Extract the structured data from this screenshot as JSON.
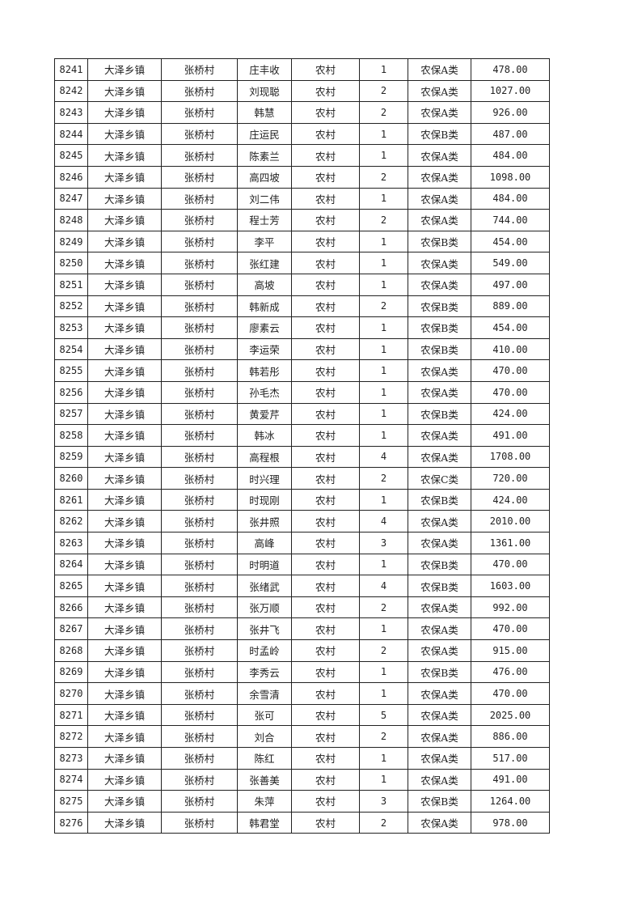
{
  "table": {
    "rows": [
      [
        "8241",
        "大泽乡镇",
        "张桥村",
        "庄丰收",
        "农村",
        "1",
        "农保A类",
        "478.00"
      ],
      [
        "8242",
        "大泽乡镇",
        "张桥村",
        "刘现聪",
        "农村",
        "2",
        "农保A类",
        "1027.00"
      ],
      [
        "8243",
        "大泽乡镇",
        "张桥村",
        "韩慧",
        "农村",
        "2",
        "农保A类",
        "926.00"
      ],
      [
        "8244",
        "大泽乡镇",
        "张桥村",
        "庄运民",
        "农村",
        "1",
        "农保B类",
        "487.00"
      ],
      [
        "8245",
        "大泽乡镇",
        "张桥村",
        "陈素兰",
        "农村",
        "1",
        "农保A类",
        "484.00"
      ],
      [
        "8246",
        "大泽乡镇",
        "张桥村",
        "高四坡",
        "农村",
        "2",
        "农保A类",
        "1098.00"
      ],
      [
        "8247",
        "大泽乡镇",
        "张桥村",
        "刘二伟",
        "农村",
        "1",
        "农保A类",
        "484.00"
      ],
      [
        "8248",
        "大泽乡镇",
        "张桥村",
        "程士芳",
        "农村",
        "2",
        "农保A类",
        "744.00"
      ],
      [
        "8249",
        "大泽乡镇",
        "张桥村",
        "李平",
        "农村",
        "1",
        "农保B类",
        "454.00"
      ],
      [
        "8250",
        "大泽乡镇",
        "张桥村",
        "张红建",
        "农村",
        "1",
        "农保A类",
        "549.00"
      ],
      [
        "8251",
        "大泽乡镇",
        "张桥村",
        "高坡",
        "农村",
        "1",
        "农保A类",
        "497.00"
      ],
      [
        "8252",
        "大泽乡镇",
        "张桥村",
        "韩新成",
        "农村",
        "2",
        "农保B类",
        "889.00"
      ],
      [
        "8253",
        "大泽乡镇",
        "张桥村",
        "廖素云",
        "农村",
        "1",
        "农保B类",
        "454.00"
      ],
      [
        "8254",
        "大泽乡镇",
        "张桥村",
        "李运荣",
        "农村",
        "1",
        "农保B类",
        "410.00"
      ],
      [
        "8255",
        "大泽乡镇",
        "张桥村",
        "韩若彤",
        "农村",
        "1",
        "农保A类",
        "470.00"
      ],
      [
        "8256",
        "大泽乡镇",
        "张桥村",
        "孙毛杰",
        "农村",
        "1",
        "农保A类",
        "470.00"
      ],
      [
        "8257",
        "大泽乡镇",
        "张桥村",
        "黄爱芹",
        "农村",
        "1",
        "农保B类",
        "424.00"
      ],
      [
        "8258",
        "大泽乡镇",
        "张桥村",
        "韩冰",
        "农村",
        "1",
        "农保A类",
        "491.00"
      ],
      [
        "8259",
        "大泽乡镇",
        "张桥村",
        "高程根",
        "农村",
        "4",
        "农保A类",
        "1708.00"
      ],
      [
        "8260",
        "大泽乡镇",
        "张桥村",
        "时兴理",
        "农村",
        "2",
        "农保C类",
        "720.00"
      ],
      [
        "8261",
        "大泽乡镇",
        "张桥村",
        "时现刚",
        "农村",
        "1",
        "农保B类",
        "424.00"
      ],
      [
        "8262",
        "大泽乡镇",
        "张桥村",
        "张井照",
        "农村",
        "4",
        "农保A类",
        "2010.00"
      ],
      [
        "8263",
        "大泽乡镇",
        "张桥村",
        "高峰",
        "农村",
        "3",
        "农保A类",
        "1361.00"
      ],
      [
        "8264",
        "大泽乡镇",
        "张桥村",
        "时明道",
        "农村",
        "1",
        "农保B类",
        "470.00"
      ],
      [
        "8265",
        "大泽乡镇",
        "张桥村",
        "张绪武",
        "农村",
        "4",
        "农保B类",
        "1603.00"
      ],
      [
        "8266",
        "大泽乡镇",
        "张桥村",
        "张万顺",
        "农村",
        "2",
        "农保A类",
        "992.00"
      ],
      [
        "8267",
        "大泽乡镇",
        "张桥村",
        "张井飞",
        "农村",
        "1",
        "农保A类",
        "470.00"
      ],
      [
        "8268",
        "大泽乡镇",
        "张桥村",
        "时孟岭",
        "农村",
        "2",
        "农保A类",
        "915.00"
      ],
      [
        "8269",
        "大泽乡镇",
        "张桥村",
        "李秀云",
        "农村",
        "1",
        "农保B类",
        "476.00"
      ],
      [
        "8270",
        "大泽乡镇",
        "张桥村",
        "余雪清",
        "农村",
        "1",
        "农保A类",
        "470.00"
      ],
      [
        "8271",
        "大泽乡镇",
        "张桥村",
        "张可",
        "农村",
        "5",
        "农保A类",
        "2025.00"
      ],
      [
        "8272",
        "大泽乡镇",
        "张桥村",
        "刘合",
        "农村",
        "2",
        "农保A类",
        "886.00"
      ],
      [
        "8273",
        "大泽乡镇",
        "张桥村",
        "陈红",
        "农村",
        "1",
        "农保A类",
        "517.00"
      ],
      [
        "8274",
        "大泽乡镇",
        "张桥村",
        "张善美",
        "农村",
        "1",
        "农保A类",
        "491.00"
      ],
      [
        "8275",
        "大泽乡镇",
        "张桥村",
        "朱萍",
        "农村",
        "3",
        "农保B类",
        "1264.00"
      ],
      [
        "8276",
        "大泽乡镇",
        "张桥村",
        "韩君堂",
        "农村",
        "2",
        "农保A类",
        "978.00"
      ]
    ]
  }
}
